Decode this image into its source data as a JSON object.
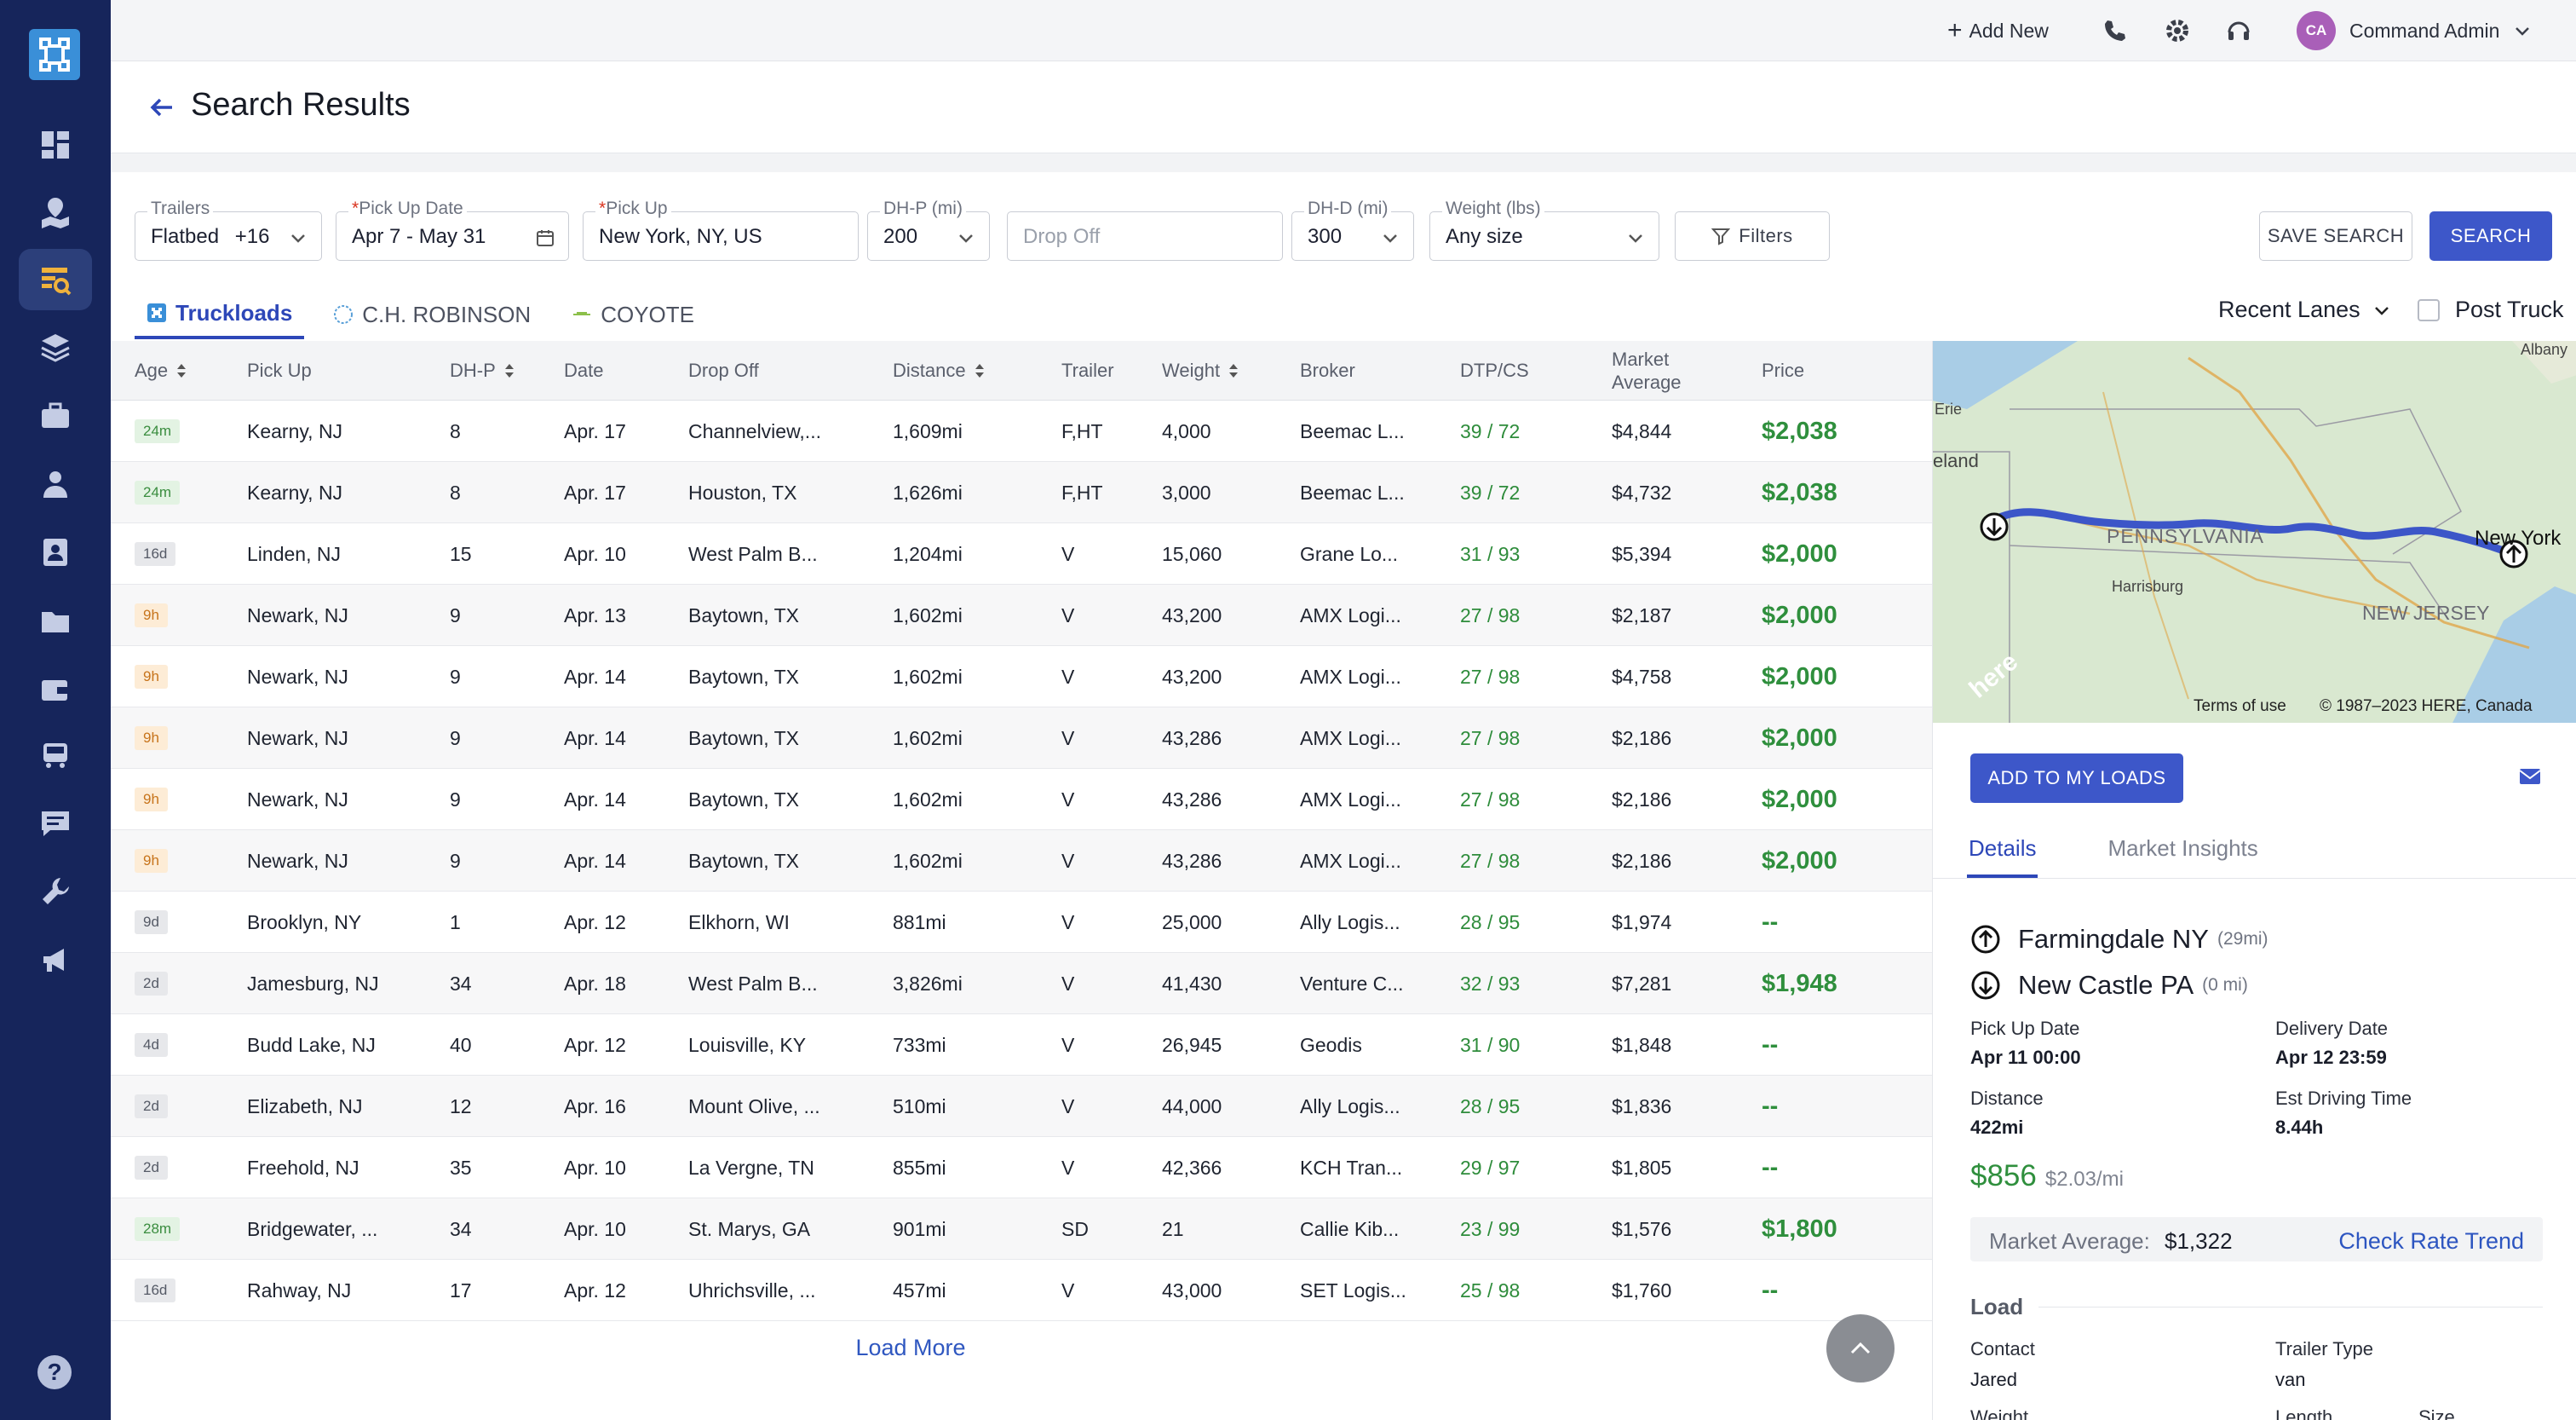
{
  "topbar": {
    "add_new": "Add New",
    "user_initials": "CA",
    "user_name": "Command Admin"
  },
  "header": {
    "title": "Search Results"
  },
  "filters": {
    "trailers": {
      "label": "Trailers",
      "value": "Flatbed",
      "count": "+16"
    },
    "pickup_date": {
      "label": "Pick Up Date",
      "required": "*",
      "value": "Apr 7 - May 31"
    },
    "pickup": {
      "label": "Pick Up",
      "required": "*",
      "value": "New York, NY, US"
    },
    "dh_p": {
      "label": "DH-P (mi)",
      "value": "200"
    },
    "drop_off": {
      "placeholder": "Drop Off"
    },
    "dh_d": {
      "label": "DH-D (mi)",
      "value": "300"
    },
    "weight": {
      "label": "Weight (lbs)",
      "value": "Any size"
    },
    "filters_btn": "Filters",
    "save_search": "SAVE SEARCH",
    "search": "SEARCH"
  },
  "tabs": [
    {
      "label": "Truckloads"
    },
    {
      "label": "C.H. ROBINSON"
    },
    {
      "label": "COYOTE"
    }
  ],
  "recent_lanes": "Recent Lanes",
  "post_truck": "Post Truck",
  "table": {
    "headers": {
      "age": "Age",
      "pickup": "Pick Up",
      "dhp": "DH-P",
      "date": "Date",
      "dropoff": "Drop Off",
      "distance": "Distance",
      "trailer": "Trailer",
      "weight": "Weight",
      "broker": "Broker",
      "dtp": "DTP/CS",
      "market1": "Market",
      "market2": "Average",
      "price": "Price"
    },
    "rows": [
      {
        "age": "24m",
        "age_color": "green",
        "pickup": "Kearny, NJ",
        "dhp": "8",
        "date": "Apr. 17",
        "dropoff": "Channelview,...",
        "distance": "1,609mi",
        "trailer": "F,HT",
        "weight": "4,000",
        "broker": "Beemac L...",
        "dtp": "39 / 72",
        "market": "$4,844",
        "price": "$2,038"
      },
      {
        "age": "24m",
        "age_color": "green",
        "pickup": "Kearny, NJ",
        "dhp": "8",
        "date": "Apr. 17",
        "dropoff": "Houston, TX",
        "distance": "1,626mi",
        "trailer": "F,HT",
        "weight": "3,000",
        "broker": "Beemac L...",
        "dtp": "39 / 72",
        "market": "$4,732",
        "price": "$2,038"
      },
      {
        "age": "16d",
        "age_color": "gray",
        "pickup": "Linden, NJ",
        "dhp": "15",
        "date": "Apr. 10",
        "dropoff": "West Palm B...",
        "distance": "1,204mi",
        "trailer": "V",
        "weight": "15,060",
        "broker": "Grane Lo...",
        "dtp": "31 / 93",
        "market": "$5,394",
        "price": "$2,000"
      },
      {
        "age": "9h",
        "age_color": "orange",
        "pickup": "Newark, NJ",
        "dhp": "9",
        "date": "Apr. 13",
        "dropoff": "Baytown, TX",
        "distance": "1,602mi",
        "trailer": "V",
        "weight": "43,200",
        "broker": "AMX Logi...",
        "dtp": "27 / 98",
        "market": "$2,187",
        "price": "$2,000"
      },
      {
        "age": "9h",
        "age_color": "orange",
        "pickup": "Newark, NJ",
        "dhp": "9",
        "date": "Apr. 14",
        "dropoff": "Baytown, TX",
        "distance": "1,602mi",
        "trailer": "V",
        "weight": "43,200",
        "broker": "AMX Logi...",
        "dtp": "27 / 98",
        "market": "$4,758",
        "price": "$2,000"
      },
      {
        "age": "9h",
        "age_color": "orange",
        "pickup": "Newark, NJ",
        "dhp": "9",
        "date": "Apr. 14",
        "dropoff": "Baytown, TX",
        "distance": "1,602mi",
        "trailer": "V",
        "weight": "43,286",
        "broker": "AMX Logi...",
        "dtp": "27 / 98",
        "market": "$2,186",
        "price": "$2,000"
      },
      {
        "age": "9h",
        "age_color": "orange",
        "pickup": "Newark, NJ",
        "dhp": "9",
        "date": "Apr. 14",
        "dropoff": "Baytown, TX",
        "distance": "1,602mi",
        "trailer": "V",
        "weight": "43,286",
        "broker": "AMX Logi...",
        "dtp": "27 / 98",
        "market": "$2,186",
        "price": "$2,000"
      },
      {
        "age": "9h",
        "age_color": "orange",
        "pickup": "Newark, NJ",
        "dhp": "9",
        "date": "Apr. 14",
        "dropoff": "Baytown, TX",
        "distance": "1,602mi",
        "trailer": "V",
        "weight": "43,286",
        "broker": "AMX Logi...",
        "dtp": "27 / 98",
        "market": "$2,186",
        "price": "$2,000"
      },
      {
        "age": "9d",
        "age_color": "gray",
        "pickup": "Brooklyn, NY",
        "dhp": "1",
        "date": "Apr. 12",
        "dropoff": "Elkhorn, WI",
        "distance": "881mi",
        "trailer": "V",
        "weight": "25,000",
        "broker": "Ally Logis...",
        "dtp": "28 / 95",
        "market": "$1,974",
        "price": "--"
      },
      {
        "age": "2d",
        "age_color": "gray",
        "pickup": "Jamesburg, NJ",
        "dhp": "34",
        "date": "Apr. 18",
        "dropoff": "West Palm B...",
        "distance": "3,826mi",
        "trailer": "V",
        "weight": "41,430",
        "broker": "Venture C...",
        "dtp": "32 / 93",
        "market": "$7,281",
        "price": "$1,948"
      },
      {
        "age": "4d",
        "age_color": "gray",
        "pickup": "Budd Lake, NJ",
        "dhp": "40",
        "date": "Apr. 12",
        "dropoff": "Louisville, KY",
        "distance": "733mi",
        "trailer": "V",
        "weight": "26,945",
        "broker": "Geodis",
        "dtp": "31 / 90",
        "market": "$1,848",
        "price": "--"
      },
      {
        "age": "2d",
        "age_color": "gray",
        "pickup": "Elizabeth, NJ",
        "dhp": "12",
        "date": "Apr. 16",
        "dropoff": "Mount Olive, ...",
        "distance": "510mi",
        "trailer": "V",
        "weight": "44,000",
        "broker": "Ally Logis...",
        "dtp": "28 / 95",
        "market": "$1,836",
        "price": "--"
      },
      {
        "age": "2d",
        "age_color": "gray",
        "pickup": "Freehold, NJ",
        "dhp": "35",
        "date": "Apr. 10",
        "dropoff": "La Vergne, TN",
        "distance": "855mi",
        "trailer": "V",
        "weight": "42,366",
        "broker": "KCH Tran...",
        "dtp": "29 / 97",
        "market": "$1,805",
        "price": "--"
      },
      {
        "age": "28m",
        "age_color": "green",
        "pickup": "Bridgewater, ...",
        "dhp": "34",
        "date": "Apr. 10",
        "dropoff": "St. Marys, GA",
        "distance": "901mi",
        "trailer": "SD",
        "weight": "21",
        "broker": "Callie Kib...",
        "dtp": "23 / 99",
        "market": "$1,576",
        "price": "$1,800"
      },
      {
        "age": "16d",
        "age_color": "gray",
        "pickup": "Rahway, NJ",
        "dhp": "17",
        "date": "Apr. 12",
        "dropoff": "Uhrichsville, ...",
        "distance": "457mi",
        "trailer": "V",
        "weight": "43,000",
        "broker": "SET Logis...",
        "dtp": "25 / 98",
        "market": "$1,760",
        "price": "--"
      }
    ],
    "load_more": "Load More"
  },
  "map": {
    "labels": {
      "albany": "Albany",
      "erie": "Erie",
      "cleveland": "eland",
      "pennsylvania": "PENNSYLVANIA",
      "new_york": "New York",
      "harrisburg": "Harrisburg",
      "new_jersey": "NEW JERSEY",
      "here": "here"
    },
    "terms": "Terms of use",
    "copyright": "© 1987–2023 HERE, Canada"
  },
  "detail": {
    "add_to_loads": "ADD TO MY LOADS",
    "tabs": [
      "Details",
      "Market Insights"
    ],
    "origin": {
      "city": "Farmingdale NY",
      "dist": "(29mi)"
    },
    "destination": {
      "city": "New Castle PA",
      "dist": "(0 mi)"
    },
    "pickup_label": "Pick Up Date",
    "pickup_value": "Apr 11 00:00",
    "delivery_label": "Delivery Date",
    "delivery_value": "Apr 12 23:59",
    "distance_label": "Distance",
    "distance_value": "422mi",
    "drive_label": "Est Driving Time",
    "drive_value": "8.44h",
    "rate": "$856",
    "rate_per_mile": "$2.03/mi",
    "market_label": "Market Average:",
    "market_value": "$1,322",
    "check_rate": "Check Rate Trend",
    "load_section": "Load",
    "contact_label": "Contact",
    "contact_value": "Jared",
    "trailer_label": "Trailer Type",
    "trailer_value": "van",
    "weight_label": "Weight",
    "length_label": "Length",
    "size_label": "Size"
  },
  "colors": {
    "sidebar": "#16255b",
    "primary": "#3d57c9",
    "green_price": "#2f8f3d",
    "link": "#2d55c0"
  }
}
